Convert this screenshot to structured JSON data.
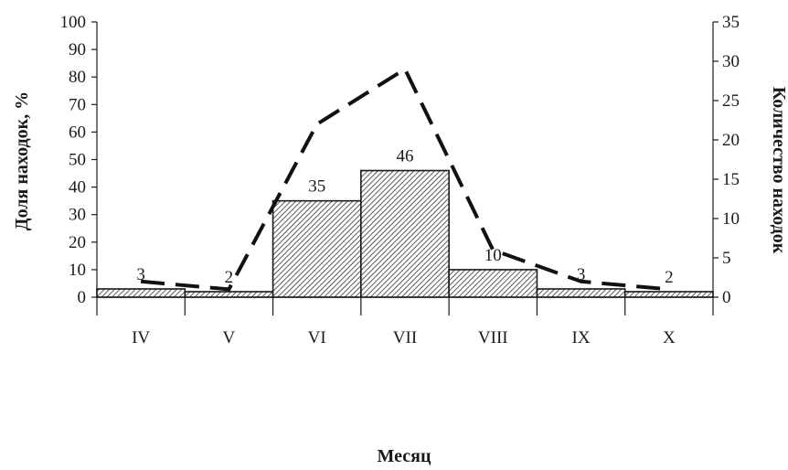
{
  "chart_data": {
    "type": "bar",
    "categories": [
      "IV",
      "V",
      "VI",
      "VII",
      "VIII",
      "IX",
      "X"
    ],
    "series": [
      {
        "type": "bar",
        "axis": "left",
        "values": [
          3,
          2,
          35,
          46,
          10,
          3,
          2
        ],
        "data_labels": [
          "3",
          "2",
          "35",
          "46",
          "10",
          "3",
          "2"
        ]
      },
      {
        "type": "line",
        "axis": "right",
        "style": "dashed",
        "values": [
          2,
          1,
          22,
          29,
          6,
          2,
          1
        ]
      }
    ],
    "xlabel": "Месяц",
    "ylabel": "Доля находок, %",
    "y2label": "Количество находок",
    "ylim": [
      0,
      100
    ],
    "y2lim": [
      0,
      35
    ],
    "yticks": [
      "0",
      "10",
      "20",
      "30",
      "40",
      "50",
      "60",
      "70",
      "80",
      "90",
      "100"
    ],
    "y2ticks": [
      "0",
      "5",
      "10",
      "15",
      "20",
      "25",
      "30",
      "35"
    ],
    "grid": false,
    "legend": "none"
  },
  "colors": {
    "ink": "#1a1a1a",
    "background": "#ffffff"
  }
}
